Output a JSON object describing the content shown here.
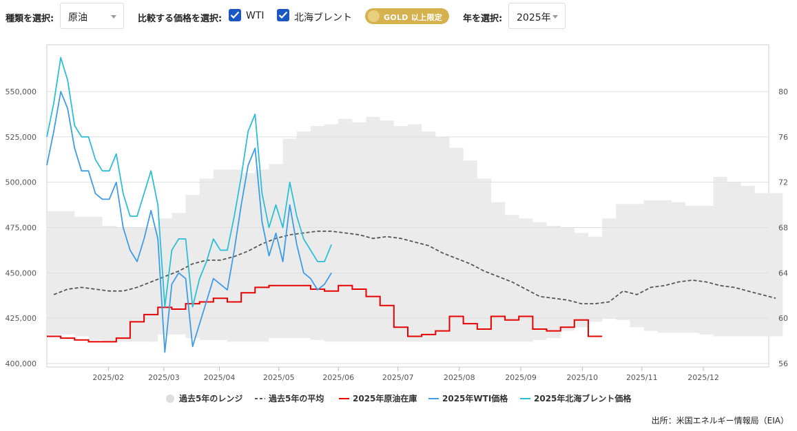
{
  "toolbar": {
    "type_label": "種類を選択:",
    "type_value": "原油",
    "compare_label": "比較する価格を選択:",
    "wti_label": "WTI",
    "brent_label": "北海ブレント",
    "gold_badge": "GOLD 以上限定",
    "year_label": "年を選択:",
    "year_value": "2025年"
  },
  "source": "出所：米国エネルギー情報局（EIA）",
  "colors": {
    "range": "#ebebeb",
    "avg": "#555555",
    "stock": "#e60000",
    "wti": "#3d9be9",
    "brent": "#2bbfd6"
  },
  "chart_data": {
    "type": "line",
    "x_axis": {
      "ticks": [
        "2025/02",
        "2025/03",
        "2025/04",
        "2025/05",
        "2025/06",
        "2025/07",
        "2025/08",
        "2025/09",
        "2025/10",
        "2025/11",
        "2025/12"
      ],
      "range_weeks": [
        0,
        52
      ]
    },
    "y_left": {
      "range": [
        400000,
        550000
      ],
      "ticks": [
        "400,000",
        "425,000",
        "450,000",
        "475,000",
        "500,000",
        "525,000",
        "550,000"
      ]
    },
    "y_right": {
      "range": [
        56,
        80
      ],
      "ticks": [
        "56",
        "60",
        "64",
        "68",
        "72",
        "76",
        "80"
      ]
    },
    "grid": true,
    "legend_position": "bottom",
    "legend": [
      "過去5年のレンジ",
      "過去5年の平均",
      "2025年原油在庫",
      "2025年WTI価格",
      "2025年北海ブレント価格"
    ],
    "series": [
      {
        "name": "過去5年のレンジ",
        "axis": "left",
        "upper": [
          484,
          484,
          481,
          481,
          476,
          475,
          475,
          475,
          480,
          483,
          493,
          502,
          507,
          507,
          505,
          507,
          510,
          524,
          528,
          531,
          532,
          535,
          533,
          536,
          534,
          531,
          532,
          528,
          525,
          519,
          512,
          502,
          489,
          482,
          480,
          478,
          476,
          475,
          472,
          470,
          480,
          488,
          488,
          490,
          490,
          489,
          487,
          487,
          503,
          500,
          498,
          494,
          494
        ],
        "lower": [
          416,
          416,
          415,
          413,
          412,
          412,
          412,
          412,
          416,
          416,
          414,
          413,
          413,
          412,
          412,
          412,
          414,
          414,
          414,
          413,
          412,
          412,
          412,
          412,
          412,
          412,
          412,
          412,
          412,
          412,
          412,
          412,
          412,
          412,
          412,
          413,
          414,
          418,
          420,
          423,
          425,
          424,
          420,
          418,
          417,
          417,
          417,
          416,
          415,
          415,
          415,
          415,
          415
        ]
      },
      {
        "name": "過去5年の平均",
        "axis": "left",
        "values": [
          438,
          441,
          442,
          441,
          440,
          440,
          442,
          445,
          448,
          451,
          455,
          457,
          457,
          459,
          462,
          466,
          469,
          471,
          472,
          473,
          473,
          472,
          471,
          469,
          470,
          469,
          467,
          465,
          461,
          458,
          455,
          451,
          448,
          445,
          441,
          437,
          436,
          435,
          433,
          433,
          434,
          440,
          438,
          442,
          443,
          445,
          446,
          445,
          443,
          442,
          440,
          438,
          436
        ]
      },
      {
        "name": "2025年原油在庫",
        "axis": "left",
        "values": [
          415,
          414,
          413,
          412,
          412,
          414,
          423,
          427,
          431,
          430,
          433,
          434,
          436,
          434,
          439,
          442,
          443,
          443,
          443,
          441,
          440,
          443,
          441,
          437,
          432,
          420,
          415,
          416,
          418,
          426,
          422,
          419,
          426,
          424,
          426,
          419,
          418,
          420,
          424,
          415
        ]
      },
      {
        "name": "2025年WTI価格",
        "axis": "right",
        "values": [
          73.5,
          76.5,
          80,
          78.5,
          75,
          73,
          73,
          71,
          70.5,
          70.5,
          72,
          68,
          66,
          65,
          67,
          69.5,
          67,
          57,
          63,
          64,
          63.5,
          57.5,
          59.5,
          61.5,
          63.5,
          63,
          62.5,
          66,
          70,
          73.5,
          75,
          68.5,
          65.5,
          67.5,
          65,
          70,
          66.5,
          64,
          63.5,
          62.5,
          63,
          64
        ]
      },
      {
        "name": "2025年北海ブレント価格",
        "axis": "right",
        "values": [
          76,
          79,
          83,
          81,
          77,
          76,
          76,
          74,
          73,
          73,
          74.5,
          71,
          69,
          69,
          71,
          73,
          70,
          61,
          66,
          67,
          67,
          61,
          63.5,
          65,
          67,
          66,
          66,
          69,
          72.5,
          76.5,
          78,
          71,
          68,
          70,
          68,
          72,
          69,
          67,
          66,
          65,
          65,
          66.5
        ]
      }
    ]
  }
}
